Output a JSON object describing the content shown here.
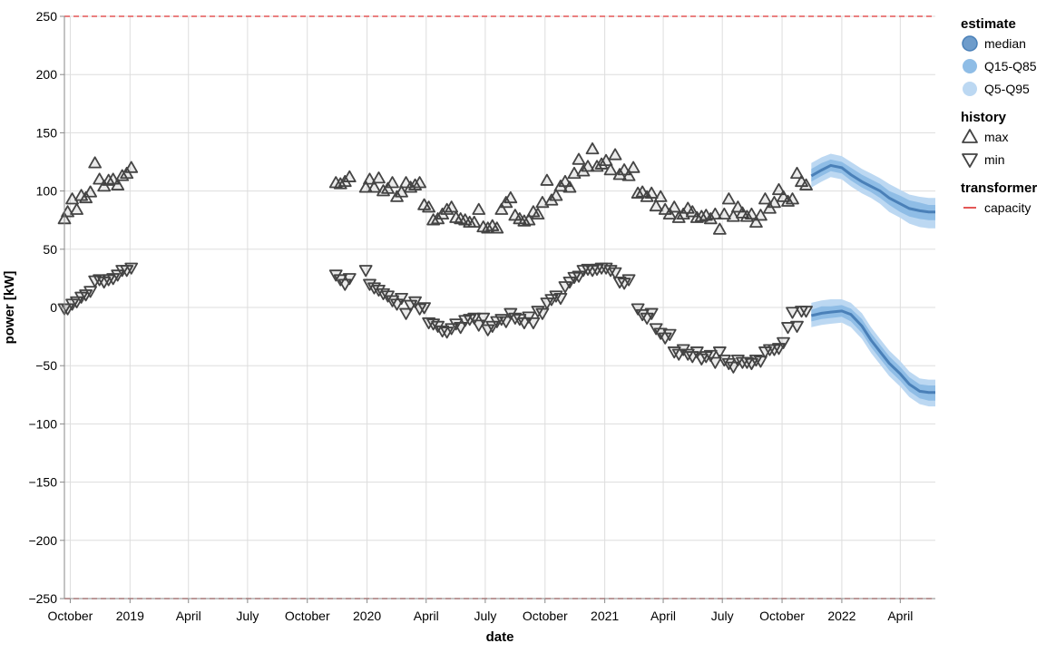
{
  "chart_data": {
    "type": "scatter",
    "title": "",
    "xlabel": "date",
    "ylabel": "power [kW]",
    "xlim": [
      "2018-09-22",
      "2022-05-25"
    ],
    "ylim": [
      -250,
      250
    ],
    "y_ticks": [
      -250,
      -200,
      -150,
      -100,
      -50,
      0,
      50,
      100,
      150,
      200,
      250
    ],
    "x_ticks": [
      {
        "date": "2018-10-01",
        "label": "October"
      },
      {
        "date": "2019-01-01",
        "label": "2019"
      },
      {
        "date": "2019-04-01",
        "label": "April"
      },
      {
        "date": "2019-07-01",
        "label": "July"
      },
      {
        "date": "2019-10-01",
        "label": "October"
      },
      {
        "date": "2020-01-01",
        "label": "2020"
      },
      {
        "date": "2020-04-01",
        "label": "April"
      },
      {
        "date": "2020-07-01",
        "label": "July"
      },
      {
        "date": "2020-10-01",
        "label": "October"
      },
      {
        "date": "2021-01-01",
        "label": "2021"
      },
      {
        "date": "2021-04-01",
        "label": "April"
      },
      {
        "date": "2021-07-01",
        "label": "July"
      },
      {
        "date": "2021-10-01",
        "label": "October"
      },
      {
        "date": "2022-01-01",
        "label": "2022"
      },
      {
        "date": "2022-04-01",
        "label": "April"
      }
    ],
    "grid": true,
    "capacity": {
      "name": "capacity",
      "values": [
        250,
        -250
      ],
      "color": "#e45756"
    },
    "history": {
      "max": [
        [
          "2018-09-22",
          76
        ],
        [
          "2018-09-27",
          82
        ],
        [
          "2018-10-04",
          93
        ],
        [
          "2018-10-11",
          84
        ],
        [
          "2018-10-18",
          96
        ],
        [
          "2018-10-25",
          94
        ],
        [
          "2018-11-01",
          99
        ],
        [
          "2018-11-08",
          124
        ],
        [
          "2018-11-15",
          110
        ],
        [
          "2018-11-22",
          104
        ],
        [
          "2018-11-29",
          109
        ],
        [
          "2018-12-06",
          110
        ],
        [
          "2018-12-13",
          105
        ],
        [
          "2018-12-20",
          113
        ],
        [
          "2018-12-27",
          115
        ],
        [
          "2019-01-03",
          120
        ],
        [
          "2019-11-14",
          107
        ],
        [
          "2019-11-21",
          106
        ],
        [
          "2019-11-28",
          108
        ],
        [
          "2019-12-05",
          112
        ],
        [
          "2019-12-30",
          103
        ],
        [
          "2020-01-05",
          110
        ],
        [
          "2020-01-12",
          103
        ],
        [
          "2020-01-19",
          111
        ],
        [
          "2020-01-26",
          100
        ],
        [
          "2020-02-02",
          102
        ],
        [
          "2020-02-09",
          107
        ],
        [
          "2020-02-16",
          95
        ],
        [
          "2020-02-23",
          99
        ],
        [
          "2020-03-01",
          107
        ],
        [
          "2020-03-08",
          103
        ],
        [
          "2020-03-15",
          105
        ],
        [
          "2020-03-22",
          107
        ],
        [
          "2020-03-29",
          88
        ],
        [
          "2020-04-05",
          86
        ],
        [
          "2020-04-12",
          75
        ],
        [
          "2020-04-19",
          76
        ],
        [
          "2020-04-26",
          80
        ],
        [
          "2020-05-03",
          84
        ],
        [
          "2020-05-10",
          86
        ],
        [
          "2020-05-17",
          77
        ],
        [
          "2020-05-24",
          76
        ],
        [
          "2020-05-31",
          75
        ],
        [
          "2020-06-07",
          73
        ],
        [
          "2020-06-14",
          73
        ],
        [
          "2020-06-21",
          84
        ],
        [
          "2020-06-28",
          69
        ],
        [
          "2020-07-05",
          68
        ],
        [
          "2020-07-12",
          70
        ],
        [
          "2020-07-19",
          68
        ],
        [
          "2020-07-26",
          84
        ],
        [
          "2020-08-02",
          90
        ],
        [
          "2020-08-09",
          94
        ],
        [
          "2020-08-16",
          79
        ],
        [
          "2020-08-23",
          76
        ],
        [
          "2020-08-30",
          74
        ],
        [
          "2020-09-06",
          75
        ],
        [
          "2020-09-13",
          82
        ],
        [
          "2020-09-20",
          80
        ],
        [
          "2020-09-27",
          90
        ],
        [
          "2020-10-04",
          109
        ],
        [
          "2020-10-11",
          92
        ],
        [
          "2020-10-18",
          96
        ],
        [
          "2020-10-25",
          104
        ],
        [
          "2020-11-01",
          108
        ],
        [
          "2020-11-08",
          103
        ],
        [
          "2020-11-15",
          115
        ],
        [
          "2020-11-22",
          127
        ],
        [
          "2020-11-29",
          117
        ],
        [
          "2020-12-06",
          121
        ],
        [
          "2020-12-13",
          136
        ],
        [
          "2020-12-20",
          121
        ],
        [
          "2020-12-27",
          123
        ],
        [
          "2021-01-03",
          126
        ],
        [
          "2021-01-10",
          118
        ],
        [
          "2021-01-17",
          131
        ],
        [
          "2021-01-24",
          114
        ],
        [
          "2021-01-31",
          118
        ],
        [
          "2021-02-07",
          113
        ],
        [
          "2021-02-14",
          120
        ],
        [
          "2021-02-21",
          98
        ],
        [
          "2021-02-28",
          99
        ],
        [
          "2021-03-07",
          95
        ],
        [
          "2021-03-14",
          98
        ],
        [
          "2021-03-21",
          87
        ],
        [
          "2021-03-28",
          95
        ],
        [
          "2021-04-04",
          84
        ],
        [
          "2021-04-11",
          80
        ],
        [
          "2021-04-18",
          86
        ],
        [
          "2021-04-25",
          77
        ],
        [
          "2021-05-02",
          80
        ],
        [
          "2021-05-09",
          85
        ],
        [
          "2021-05-16",
          82
        ],
        [
          "2021-05-23",
          77
        ],
        [
          "2021-05-30",
          78
        ],
        [
          "2021-06-06",
          79
        ],
        [
          "2021-06-13",
          76
        ],
        [
          "2021-06-20",
          80
        ],
        [
          "2021-06-27",
          67
        ],
        [
          "2021-07-04",
          80
        ],
        [
          "2021-07-11",
          93
        ],
        [
          "2021-07-18",
          78
        ],
        [
          "2021-07-25",
          86
        ],
        [
          "2021-08-01",
          81
        ],
        [
          "2021-08-08",
          78
        ],
        [
          "2021-08-15",
          80
        ],
        [
          "2021-08-22",
          73
        ],
        [
          "2021-08-29",
          79
        ],
        [
          "2021-09-05",
          93
        ],
        [
          "2021-09-12",
          85
        ],
        [
          "2021-09-19",
          90
        ],
        [
          "2021-09-26",
          101
        ],
        [
          "2021-10-03",
          95
        ],
        [
          "2021-10-10",
          91
        ],
        [
          "2021-10-17",
          93
        ],
        [
          "2021-10-24",
          115
        ],
        [
          "2021-10-31",
          108
        ],
        [
          "2021-11-07",
          105
        ]
      ],
      "min": [
        [
          "2018-09-22",
          -1
        ],
        [
          "2018-09-27",
          -1
        ],
        [
          "2018-10-04",
          3
        ],
        [
          "2018-10-11",
          5
        ],
        [
          "2018-10-18",
          9
        ],
        [
          "2018-10-25",
          11
        ],
        [
          "2018-11-01",
          14
        ],
        [
          "2018-11-08",
          23
        ],
        [
          "2018-11-15",
          24
        ],
        [
          "2018-11-22",
          22
        ],
        [
          "2018-11-29",
          24
        ],
        [
          "2018-12-06",
          25
        ],
        [
          "2018-12-13",
          28
        ],
        [
          "2018-12-20",
          32
        ],
        [
          "2018-12-27",
          32
        ],
        [
          "2019-01-03",
          34
        ],
        [
          "2019-11-14",
          28
        ],
        [
          "2019-11-21",
          24
        ],
        [
          "2019-11-28",
          20
        ],
        [
          "2019-12-05",
          25
        ],
        [
          "2019-12-30",
          32
        ],
        [
          "2020-01-05",
          20
        ],
        [
          "2020-01-12",
          17
        ],
        [
          "2020-01-19",
          15
        ],
        [
          "2020-01-26",
          12
        ],
        [
          "2020-02-02",
          10
        ],
        [
          "2020-02-09",
          6
        ],
        [
          "2020-02-16",
          3
        ],
        [
          "2020-02-23",
          8
        ],
        [
          "2020-03-01",
          -5
        ],
        [
          "2020-03-08",
          2
        ],
        [
          "2020-03-15",
          5
        ],
        [
          "2020-03-22",
          -1
        ],
        [
          "2020-03-29",
          0
        ],
        [
          "2020-04-05",
          -13
        ],
        [
          "2020-04-12",
          -14
        ],
        [
          "2020-04-19",
          -16
        ],
        [
          "2020-04-26",
          -20
        ],
        [
          "2020-05-03",
          -21
        ],
        [
          "2020-05-10",
          -18
        ],
        [
          "2020-05-17",
          -14
        ],
        [
          "2020-05-24",
          -17
        ],
        [
          "2020-05-31",
          -11
        ],
        [
          "2020-06-07",
          -10
        ],
        [
          "2020-06-14",
          -9
        ],
        [
          "2020-06-21",
          -15
        ],
        [
          "2020-06-28",
          -9
        ],
        [
          "2020-07-05",
          -19
        ],
        [
          "2020-07-12",
          -16
        ],
        [
          "2020-07-19",
          -12
        ],
        [
          "2020-07-26",
          -10
        ],
        [
          "2020-08-02",
          -12
        ],
        [
          "2020-08-09",
          -5
        ],
        [
          "2020-08-16",
          -9
        ],
        [
          "2020-08-23",
          -10
        ],
        [
          "2020-08-30",
          -13
        ],
        [
          "2020-09-06",
          -8
        ],
        [
          "2020-09-13",
          -13
        ],
        [
          "2020-09-20",
          -3
        ],
        [
          "2020-09-27",
          -5
        ],
        [
          "2020-10-04",
          4
        ],
        [
          "2020-10-11",
          7
        ],
        [
          "2020-10-18",
          10
        ],
        [
          "2020-10-25",
          8
        ],
        [
          "2020-11-01",
          18
        ],
        [
          "2020-11-08",
          22
        ],
        [
          "2020-11-15",
          26
        ],
        [
          "2020-11-22",
          27
        ],
        [
          "2020-11-29",
          32
        ],
        [
          "2020-12-06",
          33
        ],
        [
          "2020-12-13",
          32
        ],
        [
          "2020-12-20",
          33
        ],
        [
          "2020-12-27",
          34
        ],
        [
          "2021-01-03",
          34
        ],
        [
          "2021-01-10",
          32
        ],
        [
          "2021-01-17",
          30
        ],
        [
          "2021-01-24",
          22
        ],
        [
          "2021-01-31",
          21
        ],
        [
          "2021-02-07",
          24
        ],
        [
          "2021-02-21",
          -1
        ],
        [
          "2021-02-28",
          -6
        ],
        [
          "2021-03-07",
          -9
        ],
        [
          "2021-03-14",
          -5
        ],
        [
          "2021-03-21",
          -18
        ],
        [
          "2021-03-28",
          -22
        ],
        [
          "2021-04-04",
          -26
        ],
        [
          "2021-04-11",
          -23
        ],
        [
          "2021-04-18",
          -38
        ],
        [
          "2021-04-25",
          -40
        ],
        [
          "2021-05-02",
          -36
        ],
        [
          "2021-05-09",
          -40
        ],
        [
          "2021-05-16",
          -42
        ],
        [
          "2021-05-23",
          -38
        ],
        [
          "2021-05-30",
          -44
        ],
        [
          "2021-06-06",
          -42
        ],
        [
          "2021-06-13",
          -41
        ],
        [
          "2021-06-20",
          -47
        ],
        [
          "2021-06-27",
          -38
        ],
        [
          "2021-07-04",
          -45
        ],
        [
          "2021-07-11",
          -48
        ],
        [
          "2021-07-18",
          -51
        ],
        [
          "2021-07-25",
          -45
        ],
        [
          "2021-08-01",
          -47
        ],
        [
          "2021-08-08",
          -47
        ],
        [
          "2021-08-15",
          -48
        ],
        [
          "2021-08-22",
          -45
        ],
        [
          "2021-08-29",
          -46
        ],
        [
          "2021-09-05",
          -38
        ],
        [
          "2021-09-12",
          -36
        ],
        [
          "2021-09-19",
          -36
        ],
        [
          "2021-09-26",
          -35
        ],
        [
          "2021-10-03",
          -30
        ],
        [
          "2021-10-10",
          -17
        ],
        [
          "2021-10-17",
          -4
        ],
        [
          "2021-10-24",
          -16
        ],
        [
          "2021-10-31",
          -3
        ],
        [
          "2021-11-07",
          -3
        ]
      ]
    },
    "forecast_dates": [
      "2021-11-15",
      "2021-12-01",
      "2021-12-15",
      "2022-01-01",
      "2022-01-15",
      "2022-02-01",
      "2022-02-15",
      "2022-03-01",
      "2022-03-15",
      "2022-04-01",
      "2022-04-15",
      "2022-05-01",
      "2022-05-15",
      "2022-05-25"
    ],
    "forecast": {
      "upper": {
        "median": [
          113,
          118,
          122,
          120,
          114,
          108,
          104,
          100,
          94,
          89,
          85,
          83,
          82,
          82
        ],
        "q15": [
          108,
          113,
          117,
          115,
          109,
          103,
          99,
          94,
          88,
          82,
          78,
          76,
          75,
          75
        ],
        "q85": [
          119,
          124,
          127,
          125,
          120,
          114,
          110,
          106,
          100,
          96,
          92,
          90,
          88,
          88
        ],
        "q5": [
          103,
          108,
          112,
          110,
          104,
          98,
          94,
          89,
          82,
          77,
          72,
          69,
          68,
          68
        ],
        "q95": [
          124,
          129,
          132,
          130,
          125,
          119,
          115,
          111,
          106,
          101,
          97,
          95,
          94,
          94
        ]
      },
      "lower": {
        "median": [
          -7,
          -5,
          -4,
          -3,
          -6,
          -16,
          -28,
          -38,
          -48,
          -57,
          -66,
          -72,
          -73,
          -73
        ],
        "q15": [
          -12,
          -10,
          -9,
          -8,
          -12,
          -22,
          -34,
          -44,
          -54,
          -63,
          -72,
          -78,
          -80,
          -80
        ],
        "q85": [
          -2,
          1,
          1,
          2,
          -1,
          -10,
          -22,
          -32,
          -42,
          -51,
          -60,
          -66,
          -67,
          -67
        ],
        "q5": [
          -17,
          -15,
          -14,
          -13,
          -17,
          -27,
          -39,
          -49,
          -59,
          -68,
          -77,
          -83,
          -85,
          -85
        ],
        "q95": [
          4,
          6,
          7,
          7,
          4,
          -5,
          -17,
          -27,
          -37,
          -46,
          -55,
          -61,
          -62,
          -62
        ]
      }
    },
    "colors": {
      "median": "#4a80b8",
      "q15_q85": "#8fbde6",
      "q5_q95": "#bcd8f2",
      "history_marker": "#444444",
      "capacity": "#e45756",
      "grid": "#dddddd"
    },
    "legend_position": "right",
    "legend": [
      {
        "title": "estimate",
        "items": [
          {
            "label": "median",
            "symbol": "circle-dark"
          },
          {
            "label": "Q15-Q85",
            "symbol": "circle-mid"
          },
          {
            "label": "Q5-Q95",
            "symbol": "circle-light"
          }
        ]
      },
      {
        "title": "history",
        "items": [
          {
            "label": "max",
            "symbol": "triangle-up"
          },
          {
            "label": "min",
            "symbol": "triangle-down"
          }
        ]
      },
      {
        "title": "transformer",
        "items": [
          {
            "label": "capacity",
            "symbol": "line-red"
          }
        ]
      }
    ]
  }
}
